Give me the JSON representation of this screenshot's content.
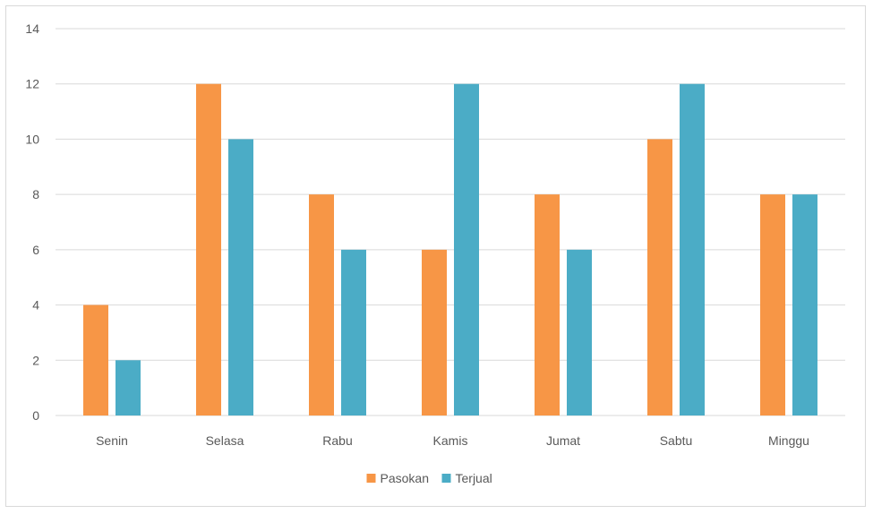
{
  "chart_data": {
    "type": "bar",
    "categories": [
      "Senin",
      "Selasa",
      "Rabu",
      "Kamis",
      "Jumat",
      "Sabtu",
      "Minggu"
    ],
    "series": [
      {
        "name": "Pasokan",
        "color": "#f79646",
        "values": [
          4,
          12,
          8,
          6,
          8,
          10,
          8
        ]
      },
      {
        "name": "Terjual",
        "color": "#4bacc6",
        "values": [
          2,
          10,
          6,
          12,
          6,
          12,
          8
        ]
      }
    ],
    "ylim": [
      0,
      14
    ],
    "yticks": [
      0,
      2,
      4,
      6,
      8,
      10,
      12,
      14
    ],
    "grid": true,
    "legend": "bottom",
    "gridline_color": "#d9d9d9",
    "title": "",
    "xlabel": "",
    "ylabel": ""
  }
}
